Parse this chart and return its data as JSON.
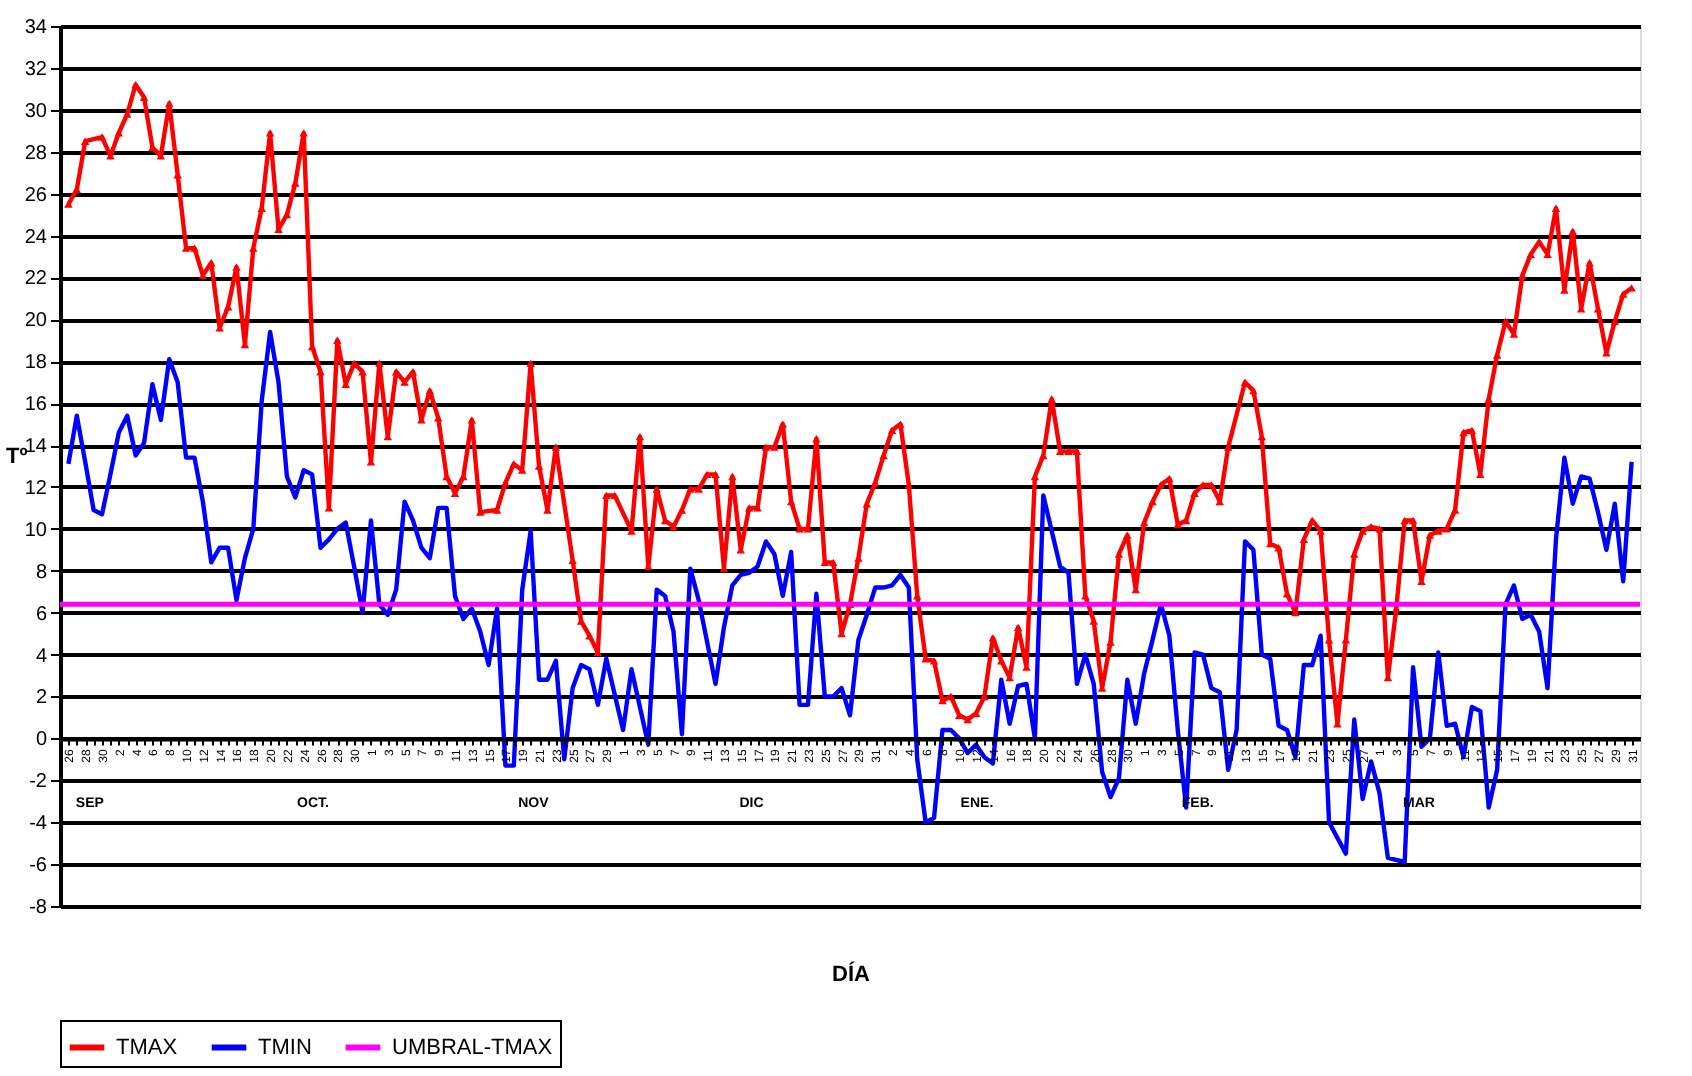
{
  "chart_data": {
    "type": "line",
    "xlabel": "DÍA",
    "ylabel": "Tº",
    "ylim": [
      -8,
      34
    ],
    "yticks": [
      -8,
      -6,
      -4,
      -2,
      0,
      2,
      4,
      6,
      8,
      10,
      12,
      14,
      16,
      18,
      20,
      22,
      24,
      26,
      28,
      30,
      32,
      34
    ],
    "categories": [
      "26",
      null,
      "28",
      null,
      "30",
      null,
      "2",
      null,
      "4",
      null,
      "6",
      null,
      "8",
      null,
      "10",
      null,
      "12",
      null,
      "14",
      null,
      "16",
      null,
      "18",
      null,
      "20",
      null,
      "22",
      null,
      "24",
      null,
      "26",
      null,
      "28",
      null,
      "30",
      null,
      "1",
      null,
      "3",
      null,
      "5",
      null,
      "7",
      null,
      "9",
      null,
      "11",
      null,
      "13",
      null,
      "15",
      null,
      "17",
      null,
      "19",
      null,
      "21",
      null,
      "23",
      null,
      "25",
      null,
      "27",
      null,
      "29",
      null,
      "1",
      null,
      "3",
      null,
      "5",
      null,
      "7",
      null,
      "9",
      null,
      "11",
      null,
      "13",
      null,
      "15",
      null,
      "17",
      null,
      "19",
      null,
      "21",
      null,
      "23",
      null,
      "25",
      null,
      "27",
      null,
      "29",
      null,
      "31",
      null,
      "2",
      null,
      "4",
      null,
      "6",
      null,
      "8",
      null,
      "10",
      null,
      "12",
      null,
      "14",
      null,
      "16",
      null,
      "18",
      null,
      "20",
      null,
      "22",
      null,
      "24",
      null,
      "26",
      null,
      "28",
      null,
      "30",
      null,
      "1",
      null,
      "3",
      null,
      "5",
      null,
      "7",
      null,
      "9",
      null,
      "11",
      null,
      "13",
      null,
      "15",
      null,
      "17",
      null,
      "19",
      null,
      "21",
      null,
      "23",
      null,
      "25",
      null,
      "27",
      null,
      "1",
      null,
      "3",
      null,
      "5",
      null,
      "7",
      null,
      "9",
      null,
      "11",
      null,
      "13",
      null,
      "15",
      null,
      "17",
      null,
      "19",
      null,
      "21",
      null,
      "23",
      null,
      "25",
      null,
      "27",
      null,
      "29",
      null,
      "31"
    ],
    "grid": "y",
    "legend": "bottom",
    "line_style": "solid",
    "series": [
      {
        "name": "TMAX",
        "color": "#ff0000",
        "marker": "triangle",
        "values": [
          25.5,
          26.2,
          28.5,
          null,
          28.7,
          27.8,
          28.9,
          29.8,
          31.2,
          30.6,
          28.2,
          27.8,
          30.3,
          26.9,
          23.4,
          23.4,
          22.1,
          22.7,
          19.6,
          20.6,
          22.5,
          18.8,
          23.4,
          25.3,
          28.9,
          24.3,
          25.0,
          26.5,
          28.9,
          18.7,
          17.5,
          11.0,
          19.0,
          16.9,
          17.9,
          17.5,
          13.2,
          17.9,
          14.4,
          17.5,
          17.0,
          17.5,
          15.2,
          16.6,
          15.3,
          12.5,
          11.7,
          12.5,
          15.2,
          10.8,
          null,
          10.9,
          12.2,
          13.1,
          12.8,
          17.9,
          13.0,
          10.9,
          13.9,
          null,
          8.5,
          5.6,
          4.9,
          4.1,
          11.6,
          11.6,
          null,
          9.9,
          14.4,
          8.2,
          11.9,
          10.4,
          10.1,
          10.9,
          11.9,
          11.9,
          12.6,
          12.6,
          8.1,
          12.5,
          9.0,
          11.0,
          11.0,
          13.9,
          13.9,
          15.0,
          11.3,
          10.0,
          10.0,
          14.3,
          8.4,
          8.4,
          5.0,
          6.4,
          8.6,
          11.2,
          12.2,
          13.5,
          14.7,
          15.0,
          12.1,
          6.8,
          3.8,
          3.7,
          1.8,
          2.0,
          1.1,
          0.9,
          1.2,
          2.0,
          4.8,
          3.7,
          2.9,
          5.3,
          3.4,
          12.5,
          13.5,
          16.2,
          13.7,
          13.7,
          13.7,
          6.8,
          5.6,
          2.4,
          4.6,
          8.8,
          9.7,
          7.1,
          10.3,
          11.3,
          12.1,
          12.4,
          10.2,
          10.4,
          11.7,
          12.1,
          12.1,
          11.3,
          13.9,
          null,
          17.0,
          16.6,
          14.4,
          9.3,
          9.1,
          6.9,
          6.0,
          9.5,
          10.4,
          9.9,
          4.7,
          0.7,
          4.7,
          8.8,
          9.9,
          10.1,
          10.0,
          2.9,
          6.2,
          10.4,
          10.4,
          7.5,
          9.7,
          9.9,
          10.0,
          10.9,
          14.6,
          14.7,
          12.6,
          16.2,
          18.3,
          19.9,
          19.3,
          22.1,
          23.1,
          23.7,
          23.1,
          25.3,
          21.4,
          24.2,
          20.5,
          22.7,
          20.5,
          18.4,
          19.9,
          21.2,
          21.5
        ]
      },
      {
        "name": "TMIN",
        "color": "#0000ff",
        "marker": "none",
        "values": [
          13.1,
          15.4,
          13.2,
          10.9,
          10.7,
          12.6,
          14.6,
          15.4,
          13.5,
          14.1,
          16.9,
          15.2,
          18.1,
          17.0,
          13.4,
          13.4,
          11.3,
          8.4,
          9.1,
          9.1,
          6.6,
          8.6,
          10.0,
          16.1,
          19.4,
          17.0,
          12.5,
          11.5,
          12.8,
          12.6,
          9.1,
          9.5,
          10.0,
          10.3,
          8.2,
          6.0,
          10.4,
          6.4,
          5.9,
          7.1,
          11.3,
          10.4,
          9.1,
          8.6,
          11.0,
          11.0,
          6.8,
          5.7,
          6.2,
          5.1,
          3.5,
          6.2,
          -1.3,
          -1.3,
          7.1,
          9.9,
          2.8,
          2.8,
          3.7,
          -1.0,
          2.4,
          3.5,
          3.3,
          1.6,
          3.8,
          null,
          0.4,
          3.3,
          null,
          -0.3,
          7.1,
          6.8,
          5.1,
          0.2,
          8.1,
          6.6,
          null,
          2.6,
          5.3,
          7.3,
          7.8,
          7.9,
          8.2,
          9.4,
          8.8,
          6.8,
          8.9,
          1.6,
          1.6,
          6.9,
          2.0,
          2.0,
          2.4,
          1.1,
          4.7,
          5.9,
          7.2,
          7.2,
          7.3,
          7.8,
          7.2,
          -1.0,
          -4.0,
          -3.8,
          0.4,
          0.4,
          0.0,
          -0.7,
          -0.3,
          -0.9,
          -1.2,
          2.8,
          0.7,
          2.5,
          2.6,
          0.0,
          11.6,
          null,
          8.2,
          7.9,
          2.6,
          4.0,
          2.6,
          -1.6,
          -2.8,
          -1.9,
          2.8,
          0.7,
          3.1,
          4.7,
          6.4,
          4.9,
          0.4,
          -3.3,
          4.1,
          4.0,
          2.4,
          2.2,
          -1.5,
          0.4,
          9.4,
          9.0,
          4.0,
          3.8,
          0.6,
          0.4,
          -0.9,
          3.5,
          3.5,
          4.9,
          -4.0,
          null,
          -5.5,
          0.9,
          -2.9,
          -1.1,
          -2.6,
          -5.7,
          null,
          -5.9,
          3.4,
          -0.4,
          0.0,
          4.1,
          0.6,
          0.7,
          -0.9,
          1.5,
          1.3,
          -3.3,
          -1.5,
          6.4,
          7.3,
          5.7,
          5.9,
          5.1,
          2.4,
          9.5,
          13.4,
          11.2,
          12.5,
          12.4,
          10.8,
          9.0,
          11.2,
          7.5,
          13.2
        ]
      }
    ],
    "ref_lines": [
      {
        "axis": "y",
        "value": 6.4,
        "label": "UMBRAL-TMAX",
        "color": "#ff00ff"
      }
    ],
    "annotations": [
      "SEP",
      "OCT.",
      "NOV",
      "DIC",
      "ENE.",
      "FEB.",
      "MAR"
    ]
  }
}
